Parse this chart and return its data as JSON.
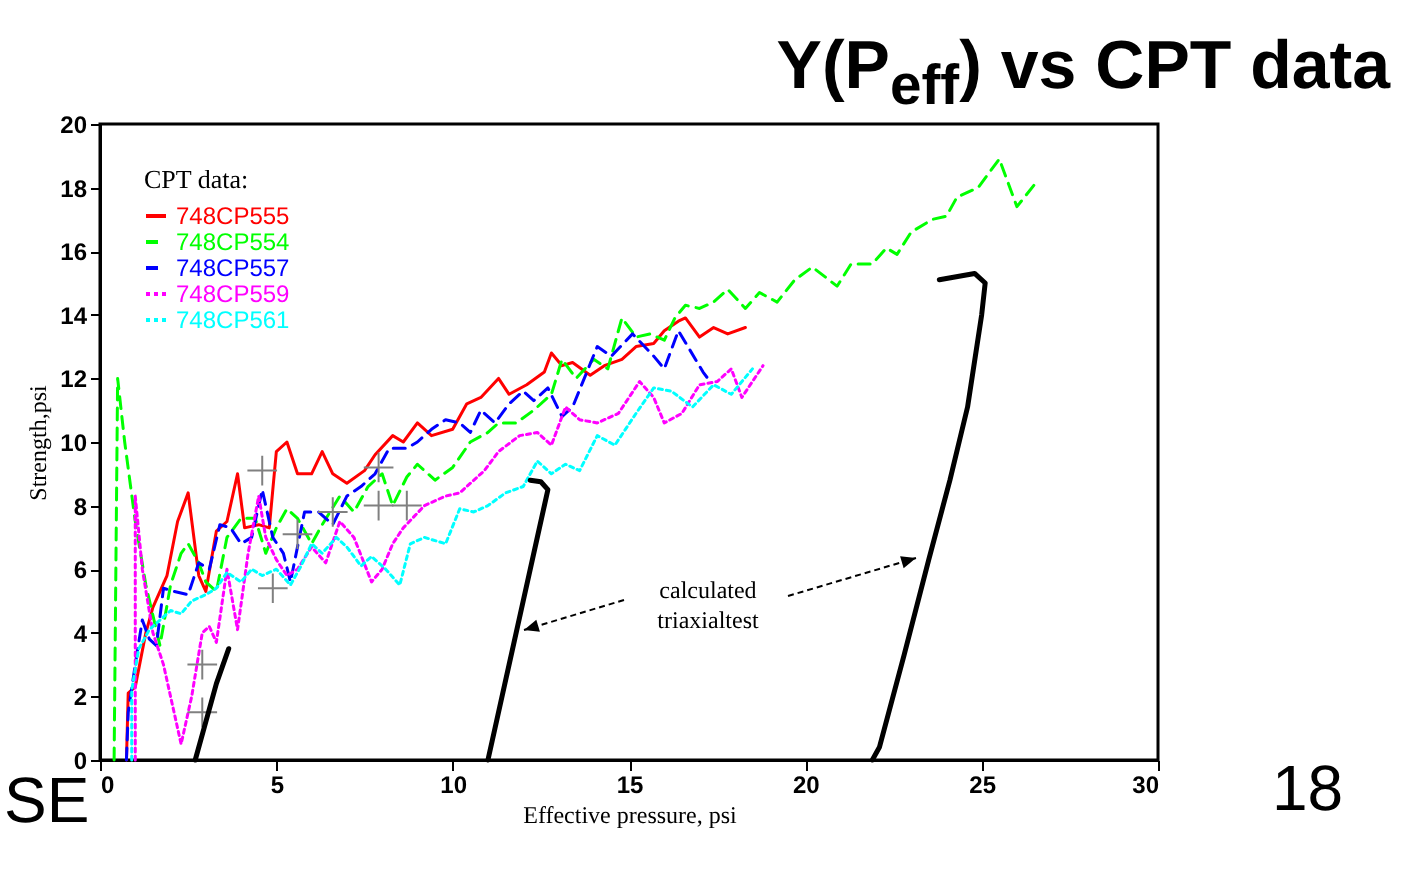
{
  "chart_data": {
    "type": "line",
    "title": "Y(P$_{eff}$) vs CPT data",
    "xlabel": "Effective pressure, psi",
    "ylabel": "Strength,psi",
    "legend_title": "CPT data:",
    "legend": "top left",
    "xlim": [
      0,
      30
    ],
    "ylim": [
      0,
      20
    ],
    "xticks": [
      0,
      5,
      10,
      15,
      20,
      25,
      30
    ],
    "yticks": [
      0,
      2,
      4,
      6,
      8,
      10,
      12,
      14,
      16,
      18,
      20
    ],
    "annotations": [
      "calculated triaxialtest",
      "SE",
      "18"
    ],
    "series": [
      {
        "name": "748CP555",
        "color": "#ff0000",
        "line_style": "solid",
        "x": [
          0.75,
          0.8,
          1.0,
          1.3,
          1.5,
          1.9,
          2.2,
          2.5,
          2.8,
          3.0,
          3.3,
          3.6,
          3.9,
          4.1,
          4.5,
          4.8,
          5.0,
          5.3,
          5.6,
          6.0,
          6.3,
          6.6,
          7.0,
          7.5,
          7.8,
          8.3,
          8.6,
          9.0,
          9.4,
          10.0,
          10.4,
          10.8,
          11.3,
          11.6,
          12.1,
          12.6,
          12.8,
          13.1,
          13.4,
          13.9,
          14.3,
          14.8,
          15.2,
          15.7,
          16.0,
          16.4,
          16.6,
          17.0,
          17.4,
          17.8,
          18.3
        ],
        "values": [
          0,
          2.1,
          2.3,
          4.0,
          4.8,
          5.8,
          7.5,
          8.4,
          5.8,
          5.3,
          7.2,
          7.5,
          9.0,
          7.3,
          7.4,
          7.3,
          9.7,
          10.0,
          9.0,
          9.0,
          9.7,
          9.0,
          8.7,
          9.1,
          9.6,
          10.2,
          10.0,
          10.6,
          10.2,
          10.4,
          11.2,
          11.4,
          12.0,
          11.5,
          11.8,
          12.2,
          12.8,
          12.4,
          12.5,
          12.1,
          12.4,
          12.6,
          13.0,
          13.1,
          13.5,
          13.8,
          13.9,
          13.3,
          13.6,
          13.4,
          13.6
        ]
      },
      {
        "name": "748CP554",
        "color": "#00ff00",
        "line_style": "dashed",
        "x": [
          0.4,
          0.5,
          0.7,
          1.0,
          1.3,
          1.7,
          2.0,
          2.3,
          2.5,
          2.8,
          3.0,
          3.3,
          3.6,
          4.0,
          4.4,
          4.7,
          5.0,
          5.3,
          5.6,
          6.0,
          6.3,
          6.8,
          7.2,
          7.6,
          8.0,
          8.3,
          8.7,
          9.0,
          9.5,
          10.0,
          10.5,
          11.0,
          11.3,
          11.8,
          12.3,
          12.8,
          13.1,
          13.5,
          14.0,
          14.4,
          14.8,
          15.2,
          15.6,
          16.0,
          16.3,
          16.6,
          17.0,
          17.4,
          17.8,
          18.3,
          18.7,
          19.2,
          19.7,
          20.2,
          20.9,
          21.3,
          21.9,
          22.3,
          22.6,
          23.0,
          23.6,
          24.0,
          24.3,
          24.9,
          25.5,
          26.0,
          26.5
        ],
        "values": [
          0,
          12.0,
          10.0,
          7.5,
          5.5,
          3.6,
          5.5,
          6.5,
          6.8,
          6.2,
          5.6,
          5.3,
          7.0,
          7.6,
          7.6,
          6.5,
          7.3,
          7.9,
          7.6,
          6.8,
          7.4,
          8.3,
          7.8,
          8.6,
          9.0,
          8.0,
          8.9,
          9.3,
          8.8,
          9.2,
          10.0,
          10.3,
          10.6,
          10.6,
          11.0,
          11.5,
          12.6,
          12.0,
          12.6,
          12.3,
          13.9,
          13.3,
          13.4,
          13.2,
          13.9,
          14.3,
          14.2,
          14.4,
          14.8,
          14.2,
          14.7,
          14.4,
          15.1,
          15.5,
          14.9,
          15.6,
          15.6,
          16.1,
          15.9,
          16.6,
          17.0,
          17.1,
          17.7,
          18.0,
          18.9,
          17.4,
          18.1
        ]
      },
      {
        "name": "748CP557",
        "color": "#0000ff",
        "line_style": "dashed",
        "x": [
          0.75,
          0.8,
          1.0,
          1.2,
          1.4,
          1.6,
          1.8,
          2.1,
          2.5,
          2.8,
          3.1,
          3.4,
          3.7,
          4.0,
          4.3,
          4.6,
          4.9,
          5.2,
          5.4,
          5.8,
          6.2,
          6.6,
          7.0,
          7.4,
          7.8,
          8.2,
          8.7,
          9.0,
          9.4,
          9.8,
          10.2,
          10.5,
          10.8,
          11.2,
          11.6,
          12.0,
          12.3,
          12.7,
          13.1,
          13.4,
          14.1,
          14.5,
          15.1,
          15.7,
          16.0,
          16.4,
          17.1,
          17.3
        ],
        "values": [
          0,
          1.5,
          3.0,
          4.4,
          3.8,
          3.6,
          5.4,
          5.3,
          5.2,
          6.2,
          6.0,
          7.4,
          7.3,
          6.8,
          7.0,
          8.5,
          7.0,
          6.5,
          5.6,
          7.8,
          7.8,
          7.4,
          8.3,
          8.6,
          9.0,
          9.8,
          9.8,
          10.0,
          10.4,
          10.7,
          10.6,
          10.3,
          11.0,
          10.6,
          11.2,
          11.6,
          11.3,
          11.7,
          10.8,
          11.1,
          13.0,
          12.7,
          13.4,
          12.7,
          12.3,
          13.5,
          12.2,
          11.9
        ]
      },
      {
        "name": "748CP559",
        "color": "#ff00ff",
        "line_style": "dotted",
        "x": [
          1.0,
          1.0,
          1.2,
          1.5,
          1.8,
          2.2,
          2.3,
          2.6,
          2.9,
          3.1,
          3.3,
          3.6,
          3.9,
          4.2,
          4.5,
          4.7,
          5.0,
          5.3,
          5.6,
          6.0,
          6.4,
          6.8,
          7.2,
          7.7,
          8.0,
          8.3,
          8.6,
          9.2,
          9.8,
          10.2,
          10.9,
          11.3,
          11.9,
          12.4,
          12.8,
          13.2,
          13.6,
          14.1,
          14.7,
          15.3,
          15.7,
          16.0,
          16.5,
          17.0,
          17.5,
          17.9,
          18.2,
          18.8
        ],
        "values": [
          0,
          8.3,
          6.0,
          4.0,
          3.0,
          1.0,
          0.5,
          2.0,
          4.0,
          4.2,
          3.7,
          6.0,
          4.1,
          6.5,
          8.3,
          7.0,
          6.3,
          5.8,
          6.0,
          6.7,
          6.2,
          7.5,
          7.0,
          5.6,
          6.0,
          6.8,
          7.3,
          8.0,
          8.3,
          8.4,
          9.1,
          9.7,
          10.2,
          10.3,
          9.9,
          11.1,
          10.7,
          10.6,
          10.9,
          11.9,
          11.4,
          10.6,
          10.9,
          11.8,
          11.9,
          12.3,
          11.4,
          12.4
        ]
      },
      {
        "name": "748CP561",
        "color": "#00ffff",
        "line_style": "dotted",
        "x": [
          0.9,
          0.9,
          1.1,
          1.4,
          1.7,
          2.0,
          2.3,
          2.6,
          3.0,
          3.3,
          3.6,
          4.0,
          4.3,
          4.6,
          5.0,
          5.4,
          5.7,
          6.0,
          6.3,
          6.7,
          7.0,
          7.4,
          7.7,
          8.1,
          8.5,
          8.8,
          9.2,
          9.8,
          10.2,
          10.6,
          11.0,
          11.5,
          12.0,
          12.4,
          12.8,
          13.2,
          13.6,
          14.1,
          14.6,
          15.2,
          15.7,
          16.2,
          16.8,
          17.4,
          17.9,
          18.5
        ],
        "values": [
          0,
          2.2,
          3.5,
          4.1,
          4.4,
          4.7,
          4.6,
          5.0,
          5.2,
          5.4,
          5.9,
          5.6,
          6.0,
          5.8,
          6.0,
          5.5,
          6.1,
          6.8,
          6.5,
          7.0,
          6.7,
          6.1,
          6.4,
          6.0,
          5.5,
          6.8,
          7.0,
          6.8,
          7.9,
          7.8,
          8.0,
          8.4,
          8.6,
          9.4,
          9.0,
          9.3,
          9.1,
          10.2,
          9.9,
          10.9,
          11.7,
          11.6,
          11.1,
          11.8,
          11.5,
          12.3
        ]
      },
      {
        "type": "scatter",
        "marker": "cross",
        "color": "#808080",
        "x": [
          2.9,
          2.9,
          4.6,
          4.9,
          5.6,
          6.6,
          7.9,
          7.9,
          8.7
        ],
        "values": [
          3.0,
          1.5,
          9.1,
          5.4,
          7.1,
          7.8,
          9.2,
          8.0,
          8.0
        ]
      },
      {
        "color": "#000000",
        "line_style": "solid",
        "x": [
          2.7,
          3.0,
          3.3,
          3.65
        ],
        "values": [
          0,
          1.2,
          2.4,
          3.5
        ]
      },
      {
        "color": "#000000",
        "line_style": "solid",
        "x": [
          11.0,
          11.2,
          11.6,
          12.0,
          12.4,
          12.6,
          12.7,
          12.5,
          12.2
        ],
        "values": [
          0,
          1,
          3,
          5,
          7,
          8,
          8.5,
          8.75,
          8.8
        ]
      },
      {
        "color": "#000000",
        "line_style": "solid",
        "x": [
          21.9,
          22.1,
          22.8,
          23.5,
          24.1,
          24.6,
          25.0,
          25.1,
          24.8,
          23.8
        ],
        "values": [
          0,
          0.4,
          3.3,
          6.3,
          8.8,
          11.1,
          14.0,
          15.0,
          15.3,
          15.1
        ]
      }
    ]
  }
}
